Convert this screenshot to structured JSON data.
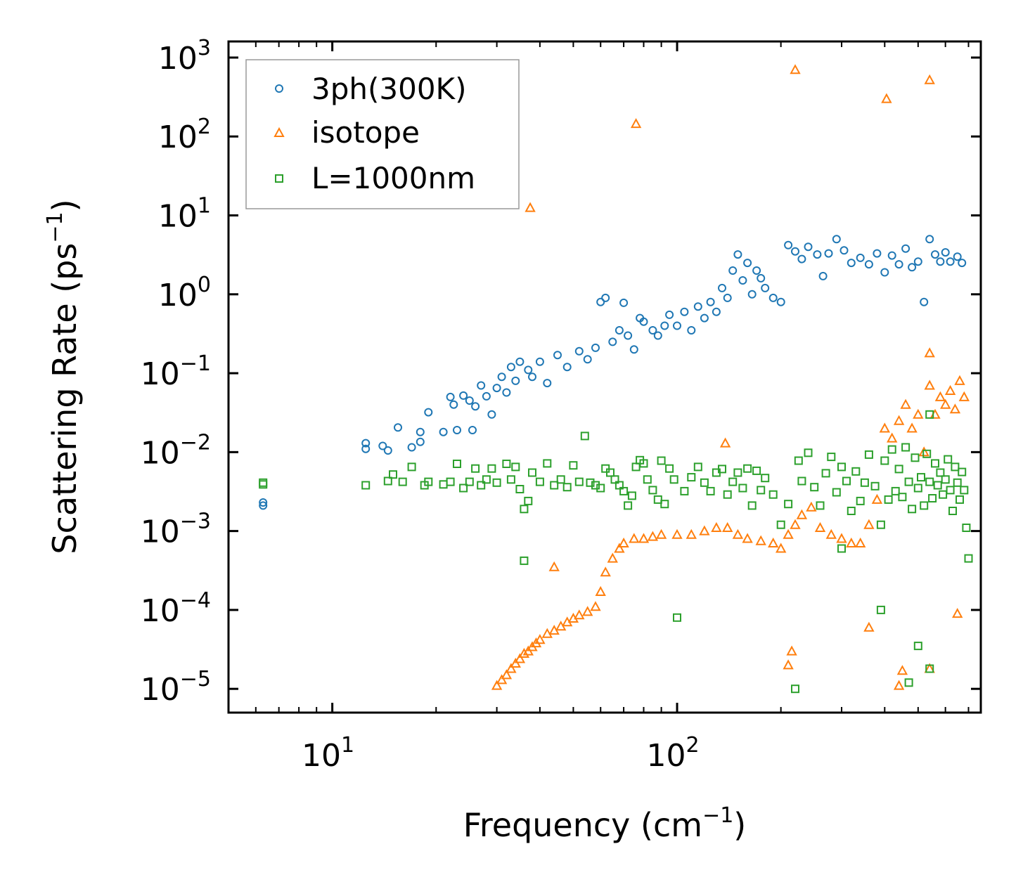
{
  "chart_data": {
    "type": "scatter",
    "title": "",
    "xlabel": "Frequency (cm",
    "ylabel": "Scattering Rate (ps",
    "unit_exponent": "−1",
    "label_close": ")",
    "xscale": "log",
    "yscale": "log",
    "xlim": [
      5,
      760
    ],
    "ylim": [
      5e-06,
      1600
    ],
    "x_ticks": [
      {
        "value": 10,
        "base": "10",
        "exp": "1"
      },
      {
        "value": 100,
        "base": "10",
        "exp": "2"
      }
    ],
    "y_ticks": [
      {
        "value": 1e-05,
        "base": "10",
        "exp": "−5"
      },
      {
        "value": 0.0001,
        "base": "10",
        "exp": "−4"
      },
      {
        "value": 0.001,
        "base": "10",
        "exp": "−3"
      },
      {
        "value": 0.01,
        "base": "10",
        "exp": "−2"
      },
      {
        "value": 0.1,
        "base": "10",
        "exp": "−1"
      },
      {
        "value": 1,
        "base": "10",
        "exp": "0"
      },
      {
        "value": 10,
        "base": "10",
        "exp": "1"
      },
      {
        "value": 100,
        "base": "10",
        "exp": "2"
      },
      {
        "value": 1000,
        "base": "10",
        "exp": "3"
      }
    ],
    "legend_position": "upper-left",
    "series": [
      {
        "name": "3ph(300K)",
        "marker": "circle",
        "color": "#1f77b4",
        "points": [
          [
            6.3,
            0.0021
          ],
          [
            6.3,
            0.0023
          ],
          [
            12.5,
            0.011
          ],
          [
            12.5,
            0.013
          ],
          [
            14,
            0.012
          ],
          [
            14.5,
            0.0105
          ],
          [
            15.5,
            0.0205
          ],
          [
            17,
            0.0115
          ],
          [
            18,
            0.018
          ],
          [
            18,
            0.0135
          ],
          [
            19,
            0.032
          ],
          [
            21,
            0.018
          ],
          [
            22,
            0.05
          ],
          [
            22.5,
            0.04
          ],
          [
            23,
            0.019
          ],
          [
            24,
            0.052
          ],
          [
            25,
            0.045
          ],
          [
            25.5,
            0.019
          ],
          [
            26,
            0.038
          ],
          [
            27,
            0.07
          ],
          [
            28,
            0.051
          ],
          [
            29,
            0.03
          ],
          [
            30,
            0.065
          ],
          [
            31,
            0.09
          ],
          [
            32,
            0.057
          ],
          [
            33,
            0.12
          ],
          [
            34,
            0.08
          ],
          [
            35,
            0.14
          ],
          [
            37,
            0.11
          ],
          [
            38,
            0.09
          ],
          [
            40,
            0.14
          ],
          [
            42,
            0.075
          ],
          [
            45,
            0.17
          ],
          [
            48,
            0.12
          ],
          [
            52,
            0.19
          ],
          [
            55,
            0.15
          ],
          [
            58,
            0.21
          ],
          [
            60,
            0.8
          ],
          [
            62,
            0.9
          ],
          [
            65,
            0.25
          ],
          [
            68,
            0.35
          ],
          [
            70,
            0.78
          ],
          [
            72,
            0.3
          ],
          [
            75,
            0.2
          ],
          [
            78,
            0.5
          ],
          [
            80,
            0.45
          ],
          [
            85,
            0.35
          ],
          [
            88,
            0.3
          ],
          [
            92,
            0.4
          ],
          [
            95,
            0.55
          ],
          [
            100,
            0.4
          ],
          [
            105,
            0.6
          ],
          [
            110,
            0.35
          ],
          [
            115,
            0.7
          ],
          [
            120,
            0.5
          ],
          [
            125,
            0.8
          ],
          [
            130,
            0.6
          ],
          [
            135,
            1.2
          ],
          [
            140,
            0.9
          ],
          [
            145,
            2.0
          ],
          [
            150,
            3.2
          ],
          [
            155,
            1.5
          ],
          [
            160,
            2.5
          ],
          [
            165,
            1.0
          ],
          [
            170,
            2.0
          ],
          [
            175,
            1.6
          ],
          [
            180,
            1.2
          ],
          [
            190,
            0.9
          ],
          [
            200,
            0.8
          ],
          [
            210,
            4.2
          ],
          [
            220,
            3.5
          ],
          [
            230,
            2.8
          ],
          [
            240,
            4.0
          ],
          [
            255,
            3.2
          ],
          [
            265,
            1.7
          ],
          [
            275,
            3.3
          ],
          [
            290,
            5.0
          ],
          [
            305,
            3.6
          ],
          [
            320,
            2.5
          ],
          [
            340,
            2.9
          ],
          [
            360,
            2.4
          ],
          [
            380,
            3.3
          ],
          [
            400,
            1.9
          ],
          [
            420,
            3.1
          ],
          [
            440,
            2.4
          ],
          [
            460,
            3.8
          ],
          [
            480,
            2.2
          ],
          [
            500,
            2.6
          ],
          [
            520,
            0.8
          ],
          [
            540,
            5.0
          ],
          [
            560,
            3.2
          ],
          [
            580,
            2.6
          ],
          [
            600,
            3.4
          ],
          [
            620,
            2.6
          ],
          [
            650,
            3.0
          ],
          [
            670,
            2.5
          ]
        ]
      },
      {
        "name": "isotope",
        "marker": "triangle",
        "color": "#ff7f0e",
        "points": [
          [
            37.5,
            12.5
          ],
          [
            76,
            145
          ],
          [
            220,
            700
          ],
          [
            405,
            300
          ],
          [
            540,
            520
          ],
          [
            30,
            1.1e-05
          ],
          [
            31,
            1.3e-05
          ],
          [
            32,
            1.5e-05
          ],
          [
            33,
            1.8e-05
          ],
          [
            34,
            2.1e-05
          ],
          [
            35,
            2.4e-05
          ],
          [
            36,
            2.8e-05
          ],
          [
            37,
            3e-05
          ],
          [
            38,
            3.4e-05
          ],
          [
            39,
            3.8e-05
          ],
          [
            40,
            4.2e-05
          ],
          [
            42,
            5e-05
          ],
          [
            44,
            5.5e-05
          ],
          [
            46,
            6.2e-05
          ],
          [
            48,
            7e-05
          ],
          [
            50,
            7.8e-05
          ],
          [
            52,
            8.6e-05
          ],
          [
            55,
            9.5e-05
          ],
          [
            58,
            0.00011
          ],
          [
            60,
            0.00017
          ],
          [
            62,
            0.0003
          ],
          [
            65,
            0.00045
          ],
          [
            68,
            0.0006
          ],
          [
            70,
            0.0007
          ],
          [
            75,
            0.0008
          ],
          [
            80,
            0.0008
          ],
          [
            85,
            0.00085
          ],
          [
            90,
            0.0009
          ],
          [
            100,
            0.0009
          ],
          [
            110,
            0.0009
          ],
          [
            120,
            0.001
          ],
          [
            130,
            0.0011
          ],
          [
            140,
            0.0011
          ],
          [
            150,
            0.0009
          ],
          [
            160,
            0.0008
          ],
          [
            175,
            0.00075
          ],
          [
            190,
            0.0007
          ],
          [
            200,
            0.0006
          ],
          [
            210,
            0.0009
          ],
          [
            220,
            0.0012
          ],
          [
            230,
            0.0016
          ],
          [
            245,
            0.002
          ],
          [
            260,
            0.0011
          ],
          [
            280,
            0.0009
          ],
          [
            300,
            0.0008
          ],
          [
            320,
            0.0007
          ],
          [
            340,
            0.0007
          ],
          [
            360,
            0.0012
          ],
          [
            380,
            0.0025
          ],
          [
            400,
            0.02
          ],
          [
            420,
            0.015
          ],
          [
            440,
            0.025
          ],
          [
            460,
            0.04
          ],
          [
            480,
            0.02
          ],
          [
            500,
            0.03
          ],
          [
            520,
            0.01
          ],
          [
            540,
            0.07
          ],
          [
            560,
            0.03
          ],
          [
            580,
            0.05
          ],
          [
            600,
            0.04
          ],
          [
            620,
            0.06
          ],
          [
            640,
            0.035
          ],
          [
            660,
            0.08
          ],
          [
            680,
            0.05
          ],
          [
            540,
            0.18
          ],
          [
            44,
            0.00035
          ],
          [
            138,
            0.013
          ],
          [
            210,
            2e-05
          ],
          [
            215,
            3e-05
          ],
          [
            360,
            6e-05
          ],
          [
            440,
            1.1e-05
          ],
          [
            450,
            1.7e-05
          ],
          [
            540,
            1.8e-05
          ],
          [
            650,
            9e-05
          ]
        ]
      },
      {
        "name": "L=1000nm",
        "marker": "square",
        "color": "#2ca02c",
        "points": [
          [
            6.3,
            0.0039
          ],
          [
            6.3,
            0.0041
          ],
          [
            12.5,
            0.0038
          ],
          [
            14.5,
            0.0043
          ],
          [
            15,
            0.0052
          ],
          [
            16,
            0.0042
          ],
          [
            17,
            0.0065
          ],
          [
            18.5,
            0.0038
          ],
          [
            19,
            0.0042
          ],
          [
            21,
            0.0039
          ],
          [
            22,
            0.0042
          ],
          [
            23,
            0.0071
          ],
          [
            24,
            0.0035
          ],
          [
            25,
            0.0042
          ],
          [
            26,
            0.0062
          ],
          [
            27,
            0.0038
          ],
          [
            28,
            0.0045
          ],
          [
            29,
            0.0062
          ],
          [
            30,
            0.0041
          ],
          [
            32,
            0.0071
          ],
          [
            33,
            0.0045
          ],
          [
            34,
            0.0065
          ],
          [
            35,
            0.0034
          ],
          [
            36,
            0.0019
          ],
          [
            37,
            0.0024
          ],
          [
            36,
            0.00042
          ],
          [
            38,
            0.0055
          ],
          [
            40,
            0.0042
          ],
          [
            42,
            0.0072
          ],
          [
            44,
            0.0038
          ],
          [
            46,
            0.0045
          ],
          [
            48,
            0.0036
          ],
          [
            50,
            0.0068
          ],
          [
            52,
            0.0042
          ],
          [
            54,
            0.016
          ],
          [
            56,
            0.0041
          ],
          [
            58,
            0.0038
          ],
          [
            60,
            0.0035
          ],
          [
            62,
            0.0062
          ],
          [
            64,
            0.0055
          ],
          [
            66,
            0.0045
          ],
          [
            68,
            0.0038
          ],
          [
            70,
            0.0032
          ],
          [
            72,
            0.0021
          ],
          [
            74,
            0.0028
          ],
          [
            76,
            0.0065
          ],
          [
            78,
            0.0079
          ],
          [
            80,
            0.0072
          ],
          [
            82,
            0.0045
          ],
          [
            85,
            0.0033
          ],
          [
            88,
            0.0025
          ],
          [
            90,
            0.0078
          ],
          [
            92,
            0.0022
          ],
          [
            95,
            0.0062
          ],
          [
            98,
            0.0045
          ],
          [
            100,
            8e-05
          ],
          [
            105,
            0.0032
          ],
          [
            110,
            0.0048
          ],
          [
            115,
            0.0065
          ],
          [
            120,
            0.0041
          ],
          [
            125,
            0.0032
          ],
          [
            130,
            0.0055
          ],
          [
            135,
            0.0061
          ],
          [
            140,
            0.0029
          ],
          [
            145,
            0.0042
          ],
          [
            150,
            0.0055
          ],
          [
            155,
            0.0035
          ],
          [
            160,
            0.0062
          ],
          [
            165,
            0.0021
          ],
          [
            170,
            0.0058
          ],
          [
            175,
            0.0033
          ],
          [
            180,
            0.0047
          ],
          [
            190,
            0.0029
          ],
          [
            200,
            0.0012
          ],
          [
            210,
            0.0022
          ],
          [
            220,
            1e-05
          ],
          [
            225,
            0.0078
          ],
          [
            230,
            0.0043
          ],
          [
            240,
            0.0098
          ],
          [
            250,
            0.0036
          ],
          [
            260,
            0.0021
          ],
          [
            270,
            0.0054
          ],
          [
            280,
            0.0087
          ],
          [
            290,
            0.0031
          ],
          [
            300,
            0.0065
          ],
          [
            310,
            0.0043
          ],
          [
            320,
            0.0018
          ],
          [
            330,
            0.0057
          ],
          [
            340,
            0.0024
          ],
          [
            350,
            0.0041
          ],
          [
            360,
            0.0093
          ],
          [
            375,
            0.0037
          ],
          [
            390,
            0.0012
          ],
          [
            400,
            0.0078
          ],
          [
            410,
            0.0025
          ],
          [
            420,
            0.0108
          ],
          [
            430,
            0.0032
          ],
          [
            440,
            0.0061
          ],
          [
            450,
            0.0027
          ],
          [
            460,
            0.0115
          ],
          [
            470,
            0.0042
          ],
          [
            480,
            0.0019
          ],
          [
            490,
            0.0085
          ],
          [
            500,
            0.0035
          ],
          [
            510,
            0.0048
          ],
          [
            520,
            0.0021
          ],
          [
            530,
            0.0095
          ],
          [
            540,
            0.0042
          ],
          [
            550,
            0.0026
          ],
          [
            560,
            0.0072
          ],
          [
            570,
            0.0038
          ],
          [
            580,
            0.0055
          ],
          [
            590,
            0.0029
          ],
          [
            600,
            0.0045
          ],
          [
            610,
            0.0081
          ],
          [
            620,
            0.0033
          ],
          [
            630,
            0.0018
          ],
          [
            640,
            0.0065
          ],
          [
            650,
            0.0041
          ],
          [
            660,
            0.0025
          ],
          [
            670,
            0.0056
          ],
          [
            680,
            0.0033
          ],
          [
            690,
            0.0011
          ],
          [
            700,
            0.00045
          ],
          [
            390,
            0.0001
          ],
          [
            470,
            1.2e-05
          ],
          [
            540,
            1.8e-05
          ],
          [
            540,
            0.03
          ],
          [
            500,
            3.5e-05
          ],
          [
            300,
            0.0006
          ]
        ]
      }
    ]
  }
}
